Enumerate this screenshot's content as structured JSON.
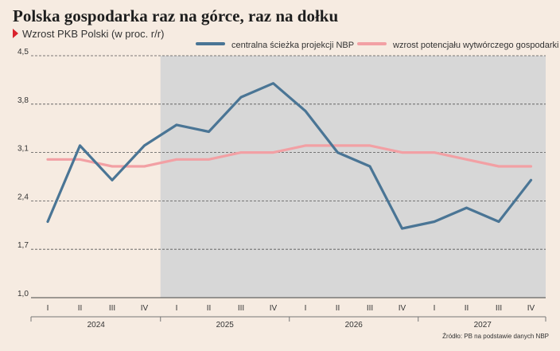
{
  "title": "Polska gospodarka raz na górce, raz na dołku",
  "subtitle": "Wzrost PKB Polski (w proc. r/r)",
  "source": "Źródło: PB na podstawie danych NBP",
  "colors": {
    "background": "#f6ebe1",
    "projection_band": "#d7d7d7",
    "series_blue": "#4a7595",
    "series_pink": "#f2a0a4",
    "accent": "#d9232d"
  },
  "chart_data": {
    "type": "line",
    "y_ticks": [
      "4,5",
      "3,8",
      "3,1",
      "2,4",
      "1,7",
      "1,0"
    ],
    "ylim": [
      1.0,
      4.5
    ],
    "x_ticks": [
      "I",
      "II",
      "III",
      "IV",
      "I",
      "II",
      "III",
      "IV",
      "I",
      "II",
      "III",
      "IV",
      "I",
      "II",
      "III",
      "IV"
    ],
    "years": [
      "2024",
      "2025",
      "2026",
      "2027"
    ],
    "shaded_from_index": 4,
    "grid": "horizontal dashed",
    "legend_position": "top-right",
    "series": [
      {
        "name": "centralna ścieżka projekcji NBP",
        "color": "#4a7595",
        "values": [
          2.1,
          3.2,
          2.7,
          3.2,
          3.5,
          3.4,
          3.9,
          4.1,
          3.7,
          3.1,
          2.9,
          2.0,
          2.1,
          2.3,
          2.1,
          2.7
        ]
      },
      {
        "name": "wzrost potencjału wytwórczego gospodarki",
        "color": "#f2a0a4",
        "values": [
          3.0,
          3.0,
          2.9,
          2.9,
          3.0,
          3.0,
          3.1,
          3.1,
          3.2,
          3.2,
          3.2,
          3.1,
          3.1,
          3.0,
          2.9,
          2.9
        ]
      }
    ]
  }
}
